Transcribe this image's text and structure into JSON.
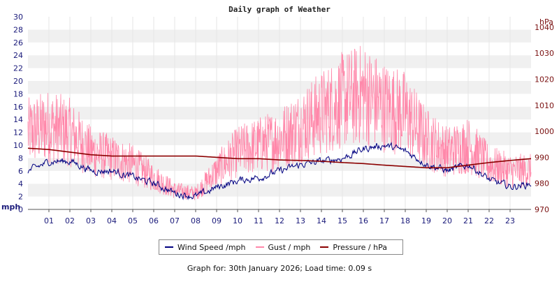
{
  "chart_data": {
    "type": "line",
    "title": "Daily graph of Weather",
    "left_axis": {
      "unit_label": "mph",
      "ylim": [
        0,
        30
      ],
      "ticks": [
        "0",
        "2",
        "4",
        "6",
        "8",
        "10",
        "12",
        "14",
        "16",
        "18",
        "20",
        "22",
        "24",
        "26",
        "28",
        "30"
      ]
    },
    "right_axis": {
      "unit_label": "hPa",
      "ylim": [
        970,
        1044
      ],
      "ticks": [
        "970",
        "980",
        "990",
        "1000",
        "1010",
        "1020",
        "1030",
        "1040"
      ]
    },
    "x_ticks": [
      "01",
      "02",
      "03",
      "04",
      "05",
      "06",
      "07",
      "08",
      "09",
      "10",
      "11",
      "12",
      "13",
      "14",
      "15",
      "16",
      "17",
      "18",
      "19",
      "20",
      "21",
      "22",
      "23"
    ],
    "grid": true,
    "legend_position": "bottom",
    "x": [
      0,
      1,
      2,
      3,
      4,
      5,
      6,
      7,
      8,
      9,
      10,
      11,
      12,
      13,
      14,
      15,
      16,
      17,
      18,
      19,
      20,
      21,
      22,
      23,
      24
    ],
    "series": [
      {
        "name": "Wind Speed /mph",
        "color": "#000080",
        "axis": "left",
        "values": [
          6,
          7.5,
          7.5,
          6,
          6,
          5,
          4,
          2.5,
          2,
          3.5,
          4.5,
          5,
          6,
          7,
          7.5,
          8,
          9.5,
          10,
          9,
          7,
          6,
          7,
          4.5,
          3.5,
          4
        ]
      },
      {
        "name": "Gust / mph",
        "color": "#ff88aa",
        "axis": "left",
        "values": [
          12,
          13,
          12,
          9,
          8,
          7,
          5,
          3,
          2.5,
          6,
          9,
          10,
          11,
          13,
          15,
          17,
          18,
          16,
          15,
          11,
          9,
          10,
          7,
          6,
          6
        ]
      },
      {
        "name": "Pressure / hPa",
        "color": "#8b0000",
        "axis": "right",
        "values": [
          993.5,
          993,
          992,
          991,
          990.5,
          990.5,
          990.5,
          990.5,
          990.5,
          990,
          989.5,
          989.5,
          989,
          988.8,
          988.5,
          988,
          987.6,
          987,
          986.5,
          986,
          986,
          987,
          988,
          988.8,
          989.5
        ]
      }
    ]
  },
  "legend": {
    "wind": "Wind Speed /mph",
    "gust": "Gust / mph",
    "pressure": "Pressure / hPa"
  },
  "footer": "Graph for: 30th January 2026; Load time: 0.09 s"
}
